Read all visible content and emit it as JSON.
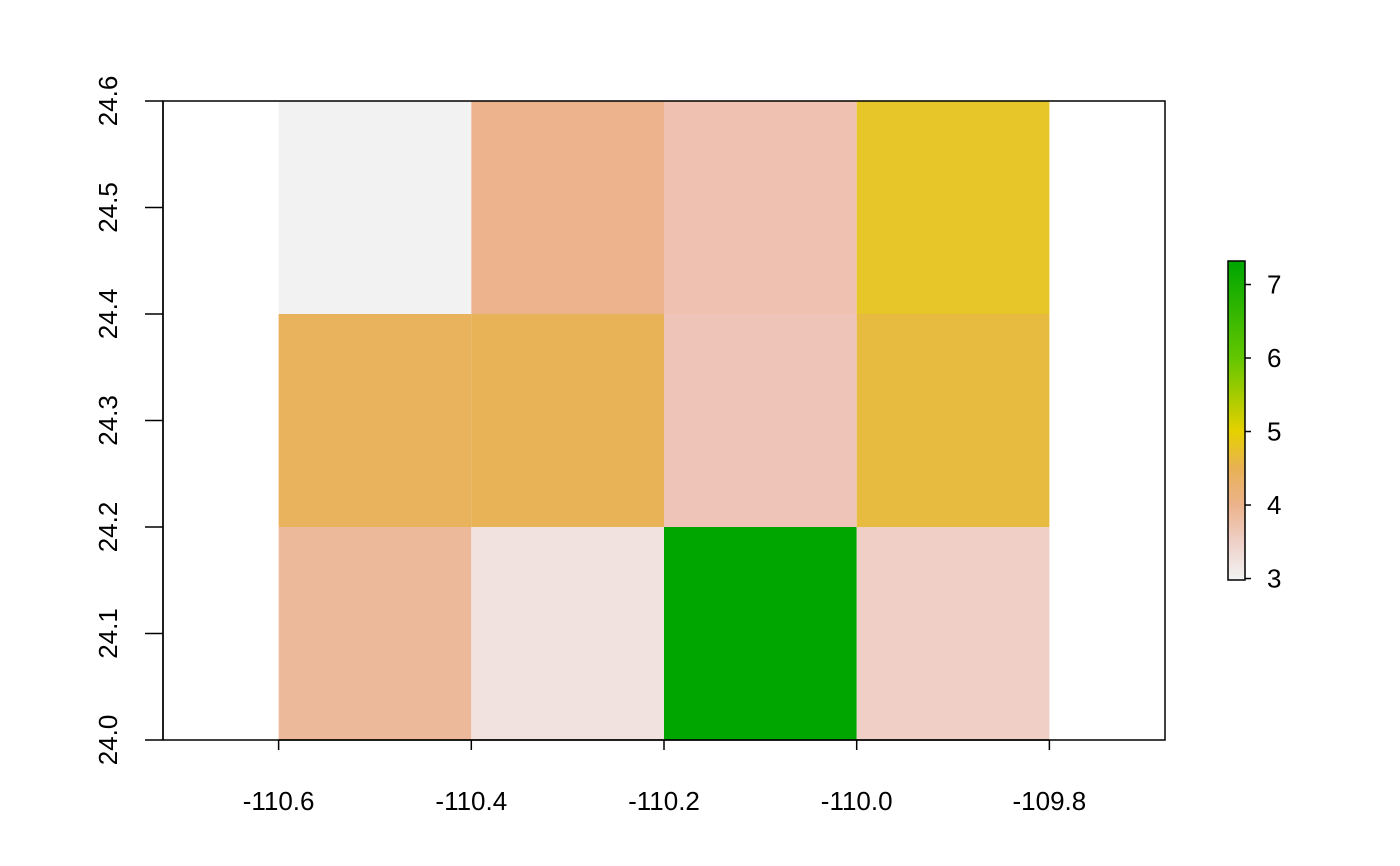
{
  "chart_data": {
    "type": "heatmap",
    "title": "",
    "xlabel": "",
    "ylabel": "",
    "xlim": [
      -110.72,
      -109.68
    ],
    "ylim": [
      24.0,
      24.6
    ],
    "x_ticks": [
      "-110.6",
      "-110.4",
      "-110.2",
      "-110.0",
      "-109.8"
    ],
    "x_tick_values": [
      -110.6,
      -110.4,
      -110.2,
      -110.0,
      -109.8
    ],
    "y_ticks": [
      "24.0",
      "24.1",
      "24.2",
      "24.3",
      "24.4",
      "24.5",
      "24.6"
    ],
    "y_tick_values": [
      24.0,
      24.1,
      24.2,
      24.3,
      24.4,
      24.5,
      24.6
    ],
    "cell_width": 0.2,
    "cell_height": 0.2,
    "cells": [
      {
        "x0": -110.6,
        "y0": 24.4,
        "value": 3.0,
        "color": "#f2f2f2"
      },
      {
        "x0": -110.4,
        "y0": 24.4,
        "value": 4.1,
        "color": "#ecb38d"
      },
      {
        "x0": -110.2,
        "y0": 24.4,
        "value": 3.7,
        "color": "#eec1b1"
      },
      {
        "x0": -110.0,
        "y0": 24.4,
        "value": 5.0,
        "color": "#e7c62a"
      },
      {
        "x0": -110.6,
        "y0": 24.2,
        "value": 4.5,
        "color": "#e9b25c"
      },
      {
        "x0": -110.4,
        "y0": 24.2,
        "value": 4.5,
        "color": "#e8b256"
      },
      {
        "x0": -110.2,
        "y0": 24.2,
        "value": 3.6,
        "color": "#eec4b8"
      },
      {
        "x0": -110.0,
        "y0": 24.2,
        "value": 4.6,
        "color": "#e7ba40"
      },
      {
        "x0": -110.6,
        "y0": 24.0,
        "value": 3.9,
        "color": "#edb99b"
      },
      {
        "x0": -110.4,
        "y0": 24.0,
        "value": 3.2,
        "color": "#f1e2e0"
      },
      {
        "x0": -110.2,
        "y0": 24.0,
        "value": 7.3,
        "color": "#00a600"
      },
      {
        "x0": -110.0,
        "y0": 24.0,
        "value": 3.5,
        "color": "#efcfc6"
      }
    ],
    "legend": {
      "placement": "right",
      "range": [
        2.98,
        7.32
      ],
      "ticks": [
        "3",
        "4",
        "5",
        "6",
        "7"
      ],
      "tick_values": [
        3,
        4,
        5,
        6,
        7
      ],
      "color_stops": [
        {
          "value": 3.0,
          "color": "#f2f2f2"
        },
        {
          "value": 3.5,
          "color": "#efd0c8"
        },
        {
          "value": 4.0,
          "color": "#ecb38c"
        },
        {
          "value": 4.5,
          "color": "#e8b154"
        },
        {
          "value": 5.0,
          "color": "#e5d100"
        },
        {
          "value": 6.0,
          "color": "#63c600"
        },
        {
          "value": 7.3,
          "color": "#00a600"
        }
      ]
    }
  }
}
